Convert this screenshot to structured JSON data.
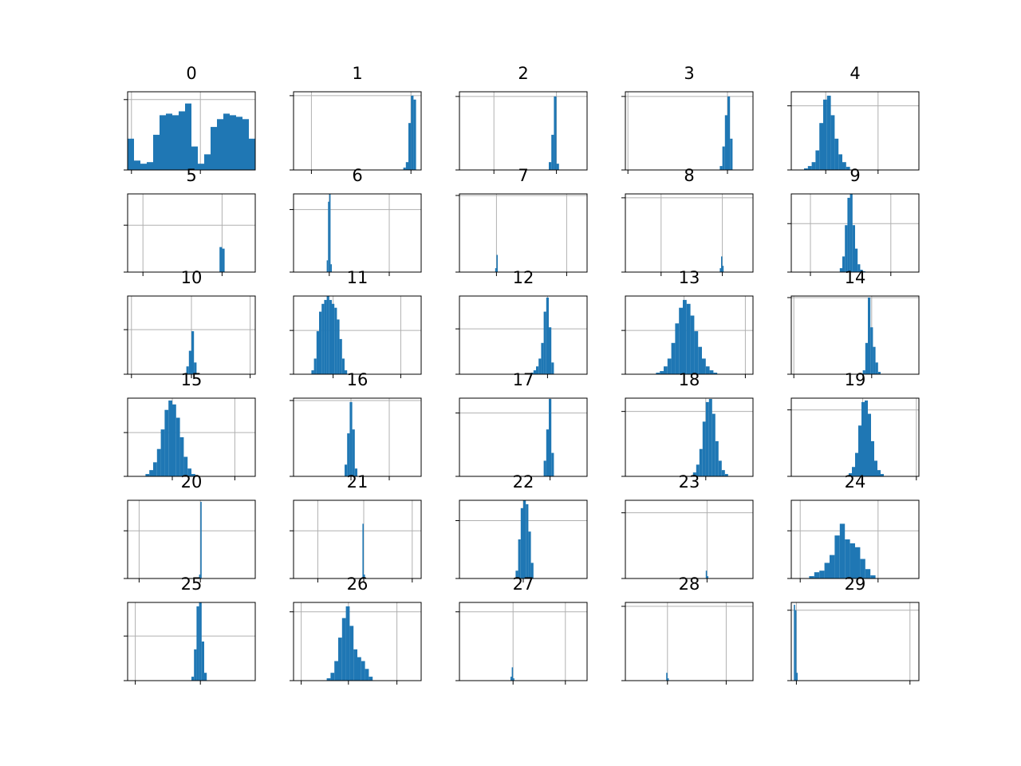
{
  "chart_data": [
    {
      "type": "histogram",
      "title": "0",
      "color": "#1f77b4",
      "grid": true,
      "xlim": [
        0,
        100
      ],
      "ylim": [
        0,
        100
      ],
      "xticks": [
        3,
        57
      ],
      "yticks": [
        0,
        90
      ],
      "bins": [
        0,
        5,
        10,
        15,
        20,
        25,
        30,
        35,
        40,
        45,
        50,
        55,
        60,
        65,
        70,
        75,
        80,
        85,
        90,
        95,
        100
      ],
      "values": [
        40,
        12,
        8,
        10,
        45,
        70,
        72,
        70,
        75,
        85,
        30,
        8,
        20,
        55,
        65,
        72,
        70,
        68,
        65,
        40
      ]
    },
    {
      "type": "histogram",
      "title": "1",
      "color": "#1f77b4",
      "grid": true,
      "xlim": [
        0,
        100
      ],
      "ylim": [
        0,
        100
      ],
      "xticks": [
        14,
        92
      ],
      "yticks": [
        0,
        95
      ],
      "bins": [
        86,
        88,
        90,
        92,
        94,
        96
      ],
      "values": [
        3,
        10,
        60,
        95,
        90
      ]
    },
    {
      "type": "histogram",
      "title": "2",
      "color": "#1f77b4",
      "grid": true,
      "xlim": [
        0,
        100
      ],
      "ylim": [
        0,
        100
      ],
      "xticks": [
        27,
        76
      ],
      "yticks": [
        0,
        94
      ],
      "bins": [
        70,
        72,
        74,
        76,
        78
      ],
      "values": [
        10,
        45,
        94,
        8
      ]
    },
    {
      "type": "histogram",
      "title": "3",
      "color": "#1f77b4",
      "grid": true,
      "xlim": [
        0,
        100
      ],
      "ylim": [
        0,
        100
      ],
      "xticks": [
        2,
        80
      ],
      "yticks": [
        0,
        94
      ],
      "bins": [
        74,
        76,
        78,
        80,
        82,
        84
      ],
      "values": [
        5,
        30,
        70,
        94,
        40
      ]
    },
    {
      "type": "histogram",
      "title": "4",
      "color": "#1f77b4",
      "grid": true,
      "xlim": [
        0,
        100
      ],
      "ylim": [
        0,
        100
      ],
      "xticks": [
        27,
        68
      ],
      "yticks": [
        0,
        82
      ],
      "bins": [
        10,
        13,
        16,
        19,
        22,
        25,
        28,
        31,
        34,
        37,
        40,
        43,
        46
      ],
      "values": [
        2,
        5,
        10,
        25,
        60,
        90,
        95,
        70,
        40,
        20,
        10,
        4
      ]
    },
    {
      "type": "histogram",
      "title": "5",
      "color": "#1f77b4",
      "grid": true,
      "xlim": [
        0,
        100
      ],
      "ylim": [
        0,
        100
      ],
      "xticks": [
        12,
        74
      ],
      "yticks": [
        0,
        60
      ],
      "bins": [
        72,
        74,
        76
      ],
      "values": [
        32,
        30
      ]
    },
    {
      "type": "histogram",
      "title": "6",
      "color": "#1f77b4",
      "grid": true,
      "xlim": [
        0,
        100
      ],
      "ylim": [
        0,
        100
      ],
      "xticks": [
        28,
        75
      ],
      "yticks": [
        0,
        80
      ],
      "bins": [
        26,
        27,
        28,
        29,
        30
      ],
      "values": [
        15,
        90,
        100,
        10
      ]
    },
    {
      "type": "histogram",
      "title": "7",
      "color": "#1f77b4",
      "grid": true,
      "xlim": [
        0,
        100
      ],
      "ylim": [
        0,
        100
      ],
      "xticks": [
        29,
        84
      ],
      "yticks": [
        0,
        98
      ],
      "bins": [
        28,
        29,
        30
      ],
      "values": [
        5,
        22
      ]
    },
    {
      "type": "histogram",
      "title": "8",
      "color": "#1f77b4",
      "grid": true,
      "xlim": [
        0,
        100
      ],
      "ylim": [
        0,
        100
      ],
      "xticks": [
        28,
        76
      ],
      "yticks": [
        0,
        95
      ],
      "bins": [
        74,
        75,
        76,
        77
      ],
      "values": [
        5,
        20,
        8
      ]
    },
    {
      "type": "histogram",
      "title": "9",
      "color": "#1f77b4",
      "grid": true,
      "xlim": [
        0,
        100
      ],
      "ylim": [
        0,
        100
      ],
      "xticks": [
        15,
        78
      ],
      "yticks": [
        0,
        62
      ],
      "bins": [
        38,
        40,
        42,
        44,
        46,
        48,
        50,
        52,
        54,
        56,
        58
      ],
      "values": [
        5,
        20,
        60,
        95,
        100,
        60,
        30,
        10,
        3,
        1
      ]
    },
    {
      "type": "histogram",
      "title": "10",
      "color": "#1f77b4",
      "grid": true,
      "xlim": [
        0,
        100
      ],
      "ylim": [
        0,
        100
      ],
      "xticks": [
        3,
        50,
        96
      ],
      "yticks": [
        0,
        57
      ],
      "bins": [
        46,
        48,
        50,
        52,
        54
      ],
      "values": [
        10,
        30,
        55,
        15
      ]
    },
    {
      "type": "histogram",
      "title": "11",
      "color": "#1f77b4",
      "grid": true,
      "xlim": [
        0,
        100
      ],
      "ylim": [
        0,
        100
      ],
      "xticks": [
        31,
        84
      ],
      "yticks": [
        0,
        56
      ],
      "bins": [
        14,
        16,
        18,
        20,
        22,
        24,
        26,
        28,
        30,
        32,
        34,
        36,
        38,
        40,
        42
      ],
      "values": [
        5,
        20,
        55,
        80,
        90,
        95,
        100,
        95,
        90,
        85,
        70,
        45,
        20,
        5
      ]
    },
    {
      "type": "histogram",
      "title": "12",
      "color": "#1f77b4",
      "grid": true,
      "xlim": [
        0,
        100
      ],
      "ylim": [
        0,
        100
      ],
      "xticks": [
        69
      ],
      "yticks": [
        0,
        58
      ],
      "bins": [
        56,
        58,
        60,
        62,
        64,
        66,
        68,
        70,
        72,
        74
      ],
      "values": [
        2,
        5,
        10,
        20,
        40,
        80,
        98,
        60,
        15
      ]
    },
    {
      "type": "histogram",
      "title": "13",
      "color": "#1f77b4",
      "grid": true,
      "xlim": [
        0,
        100
      ],
      "ylim": [
        0,
        100
      ],
      "xticks": [
        46,
        94
      ],
      "yticks": [
        0,
        56
      ],
      "bins": [
        24,
        27,
        30,
        33,
        36,
        39,
        42,
        45,
        48,
        51,
        54,
        57,
        60,
        63,
        66,
        69,
        72
      ],
      "values": [
        2,
        4,
        10,
        20,
        40,
        65,
        85,
        95,
        90,
        75,
        55,
        35,
        20,
        10,
        5,
        2
      ]
    },
    {
      "type": "histogram",
      "title": "14",
      "color": "#1f77b4",
      "grid": true,
      "xlim": [
        0,
        100
      ],
      "ylim": [
        0,
        100
      ],
      "xticks": [
        2,
        63
      ],
      "yticks": [
        0,
        98
      ],
      "bins": [
        56,
        58,
        60,
        62,
        64,
        66,
        68,
        70
      ],
      "values": [
        5,
        40,
        98,
        60,
        35,
        15,
        3
      ]
    },
    {
      "type": "histogram",
      "title": "15",
      "color": "#1f77b4",
      "grid": true,
      "xlim": [
        0,
        100
      ],
      "ylim": [
        0,
        100
      ],
      "xticks": [
        35,
        84
      ],
      "yticks": [
        0,
        56
      ],
      "bins": [
        14,
        17,
        20,
        23,
        26,
        29,
        32,
        35,
        38,
        41,
        44,
        47,
        50,
        53
      ],
      "values": [
        3,
        8,
        18,
        35,
        60,
        85,
        97,
        92,
        75,
        50,
        25,
        10,
        3
      ]
    },
    {
      "type": "histogram",
      "title": "16",
      "color": "#1f77b4",
      "grid": true,
      "xlim": [
        0,
        100
      ],
      "ylim": [
        0,
        100
      ],
      "xticks": [
        45,
        75
      ],
      "yticks": [
        0,
        97
      ],
      "bins": [
        40,
        42,
        44,
        46,
        48,
        50
      ],
      "values": [
        15,
        55,
        95,
        60,
        10
      ]
    },
    {
      "type": "histogram",
      "title": "17",
      "color": "#1f77b4",
      "grid": true,
      "xlim": [
        0,
        100
      ],
      "ylim": [
        0,
        100
      ],
      "xticks": [
        71
      ],
      "yticks": [
        0,
        81
      ],
      "bins": [
        66,
        68,
        70,
        72,
        74
      ],
      "values": [
        20,
        60,
        99,
        30
      ]
    },
    {
      "type": "histogram",
      "title": "18",
      "color": "#1f77b4",
      "grid": true,
      "xlim": [
        0,
        100
      ],
      "ylim": [
        0,
        100
      ],
      "xticks": [
        63
      ],
      "yticks": [
        0,
        83
      ],
      "bins": [
        53,
        55.5,
        58,
        60.5,
        63,
        65.5,
        68,
        70.5,
        73,
        75.5,
        78,
        80.5
      ],
      "values": [
        5,
        15,
        35,
        70,
        95,
        99,
        80,
        45,
        20,
        8,
        3
      ]
    },
    {
      "type": "histogram",
      "title": "19",
      "color": "#1f77b4",
      "grid": true,
      "xlim": [
        0,
        100
      ],
      "ylim": [
        0,
        100
      ],
      "xticks": [
        56,
        98
      ],
      "yticks": [
        0,
        85
      ],
      "bins": [
        45,
        47.5,
        50,
        52.5,
        55,
        57.5,
        60,
        62.5,
        65,
        67.5,
        70,
        72.5
      ],
      "values": [
        4,
        12,
        30,
        65,
        95,
        97,
        80,
        45,
        20,
        8,
        3
      ]
    },
    {
      "type": "histogram",
      "title": "20",
      "color": "#1f77b4",
      "grid": true,
      "xlim": [
        0,
        100
      ],
      "ylim": [
        0,
        100
      ],
      "xticks": [
        9,
        57
      ],
      "yticks": [
        0,
        61
      ],
      "bins": [
        56,
        57,
        58
      ],
      "values": [
        5,
        98
      ]
    },
    {
      "type": "histogram",
      "title": "21",
      "color": "#1f77b4",
      "grid": true,
      "xlim": [
        0,
        100
      ],
      "ylim": [
        0,
        100
      ],
      "xticks": [
        19,
        55,
        93
      ],
      "yticks": [
        0,
        61
      ],
      "bins": [
        54,
        55,
        56
      ],
      "values": [
        70,
        5
      ]
    },
    {
      "type": "histogram",
      "title": "22",
      "color": "#1f77b4",
      "grid": true,
      "xlim": [
        0,
        100
      ],
      "ylim": [
        0,
        100
      ],
      "xticks": [
        50
      ],
      "yticks": [
        0,
        74
      ],
      "bins": [
        44,
        46,
        48,
        50,
        52,
        54,
        56,
        58
      ],
      "values": [
        10,
        50,
        90,
        100,
        95,
        60,
        20
      ]
    },
    {
      "type": "histogram",
      "title": "23",
      "color": "#1f77b4",
      "grid": true,
      "xlim": [
        0,
        100
      ],
      "ylim": [
        0,
        100
      ],
      "xticks": [
        64
      ],
      "yticks": [
        0,
        84
      ],
      "bins": [
        63,
        64,
        65
      ],
      "values": [
        10,
        3
      ]
    },
    {
      "type": "histogram",
      "title": "24",
      "color": "#1f77b4",
      "grid": true,
      "xlim": [
        0,
        100
      ],
      "ylim": [
        0,
        100
      ],
      "xticks": [
        7,
        68
      ],
      "yticks": [
        0,
        61
      ],
      "bins": [
        14,
        18,
        22,
        26,
        30,
        34,
        38,
        42,
        46,
        50,
        54,
        58,
        62,
        66
      ],
      "values": [
        3,
        8,
        10,
        20,
        30,
        55,
        70,
        50,
        45,
        40,
        25,
        12,
        4
      ]
    },
    {
      "type": "histogram",
      "title": "25",
      "color": "#1f77b4",
      "grid": true,
      "xlim": [
        0,
        100
      ],
      "ylim": [
        0,
        100
      ],
      "xticks": [
        6,
        57
      ],
      "yticks": [
        0,
        57
      ],
      "bins": [
        50,
        52,
        54,
        56,
        58,
        60,
        62
      ],
      "values": [
        5,
        40,
        95,
        100,
        50,
        10
      ]
    },
    {
      "type": "histogram",
      "title": "26",
      "color": "#1f77b4",
      "grid": true,
      "xlim": [
        0,
        100
      ],
      "ylim": [
        0,
        100
      ],
      "xticks": [
        6,
        43,
        81
      ],
      "yticks": [
        0,
        88
      ],
      "bins": [
        26,
        29,
        32,
        35,
        38,
        41,
        44,
        47,
        50,
        53,
        56,
        59,
        62
      ],
      "values": [
        3,
        10,
        25,
        55,
        80,
        95,
        70,
        40,
        30,
        25,
        15,
        5
      ]
    },
    {
      "type": "histogram",
      "title": "27",
      "color": "#1f77b4",
      "grid": true,
      "xlim": [
        0,
        100
      ],
      "ylim": [
        0,
        100
      ],
      "xticks": [
        42,
        83
      ],
      "yticks": [
        0,
        88
      ],
      "bins": [
        40,
        41,
        42,
        43
      ],
      "values": [
        5,
        17,
        3
      ]
    },
    {
      "type": "histogram",
      "title": "28",
      "color": "#1f77b4",
      "grid": true,
      "xlim": [
        0,
        100
      ],
      "ylim": [
        0,
        100
      ],
      "xticks": [
        33,
        79
      ],
      "yticks": [
        0,
        95
      ],
      "bins": [
        32,
        33,
        34
      ],
      "values": [
        10,
        3
      ]
    },
    {
      "type": "histogram",
      "title": "29",
      "color": "#1f77b4",
      "grid": true,
      "xlim": [
        0,
        100
      ],
      "ylim": [
        0,
        100
      ],
      "xticks": [
        4,
        93
      ],
      "yticks": [
        0,
        90
      ],
      "bins": [
        2,
        3,
        4,
        5
      ],
      "values": [
        97,
        90,
        10
      ]
    }
  ]
}
